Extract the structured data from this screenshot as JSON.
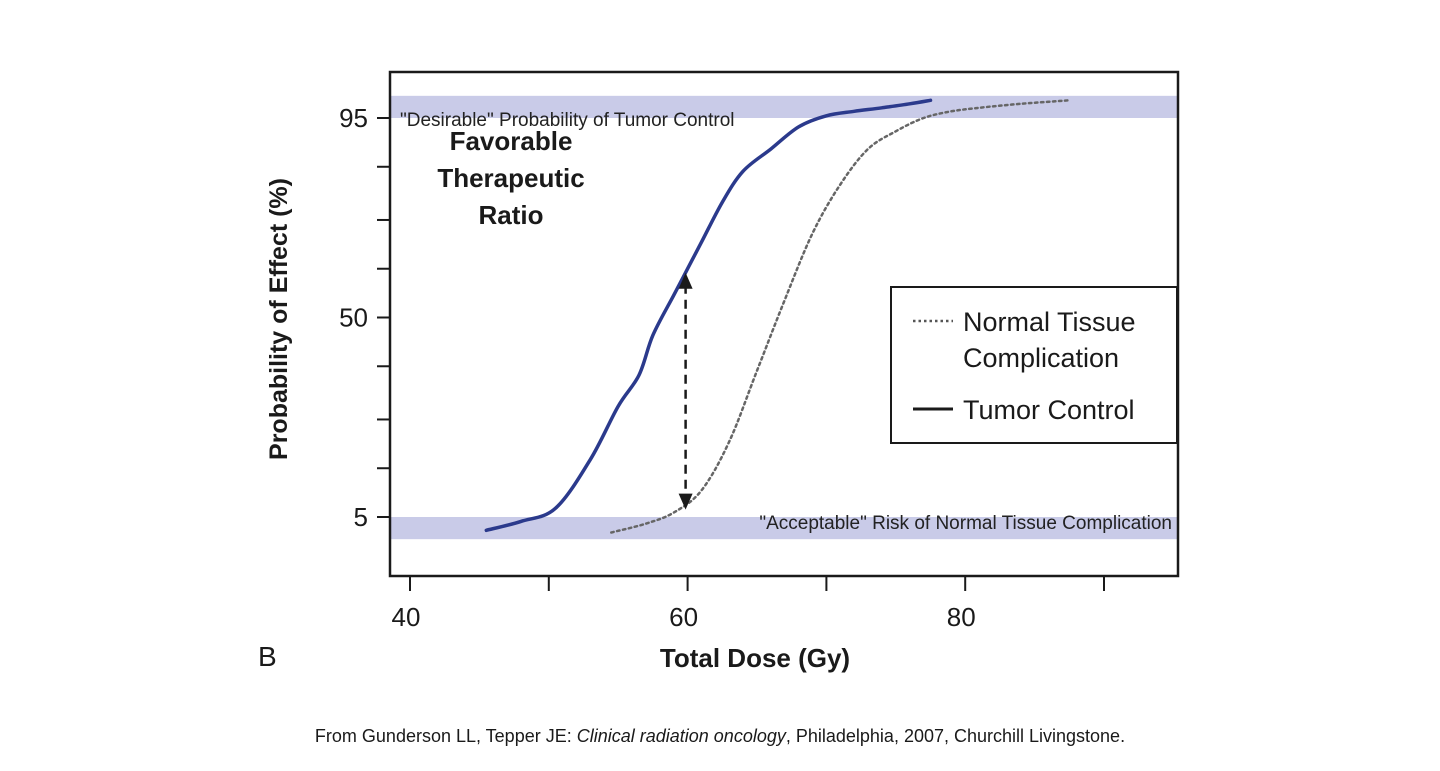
{
  "chart_data": {
    "type": "line",
    "panel_label": "B",
    "xlabel": "Total Dose (Gy)",
    "ylabel": "Probability of Effect (%)",
    "xlim": [
      38,
      95
    ],
    "ylim": [
      0,
      100
    ],
    "x_ticks": [
      40,
      50,
      60,
      70,
      80,
      90
    ],
    "x_tick_labels": [
      "40",
      "",
      "60",
      "",
      "80",
      ""
    ],
    "y_ticks": [
      5,
      16,
      27,
      39,
      50,
      61,
      72,
      84,
      95
    ],
    "y_tick_labels": [
      "5",
      "",
      "",
      "",
      "50",
      "",
      "",
      "",
      "95"
    ],
    "grid": false,
    "legend_position": "right",
    "colors": {
      "tumor": "#2b3a8c",
      "band": "#c9cbe8",
      "axis": "#1a1a1a"
    },
    "bands": [
      {
        "label": "\"Desirable\" Probability of Tumor Control",
        "y_range": [
          95,
          100
        ]
      },
      {
        "label": "\"Acceptable\" Risk of Normal Tissue Complication",
        "y_range": [
          0,
          5
        ]
      }
    ],
    "series": [
      {
        "name": "Tumor Control",
        "style": "solid",
        "x": [
          45.5,
          48,
          50.5,
          53,
          55,
          56.5,
          57.5,
          59,
          60,
          61,
          62.5,
          64,
          66,
          68,
          70,
          72,
          74,
          76,
          77.5
        ],
        "y": [
          2,
          4,
          7,
          18,
          30,
          37,
          46,
          55,
          61,
          67,
          76,
          83,
          88,
          93,
          95.5,
          96.5,
          97.3,
          98.2,
          99
        ]
      },
      {
        "name": "Normal Tissue Complication",
        "style": "dotted",
        "x": [
          54.5,
          57,
          59,
          61,
          63,
          65,
          67,
          69,
          71,
          73,
          75,
          77,
          79,
          81,
          84,
          87.5
        ],
        "y": [
          1.5,
          3.5,
          6,
          11,
          22,
          38,
          54,
          69,
          80,
          88,
          92,
          95,
          96.5,
          97.3,
          98.2,
          99
        ]
      }
    ],
    "annotations": [
      {
        "text_lines": [
          "Favorable",
          "Therapeutic",
          "Ratio"
        ],
        "type": "label"
      },
      {
        "type": "double-arrow",
        "x": 60,
        "y_range": [
          6,
          61
        ]
      }
    ]
  },
  "source": {
    "prefix": "From Gunderson LL, Tepper JE: ",
    "title": "Clinical radiation oncology",
    "suffix": ", Philadelphia, 2007, Churchill Livingstone."
  }
}
